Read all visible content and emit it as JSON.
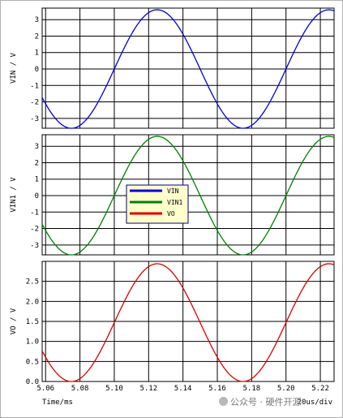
{
  "window": {
    "border_color": "#000000",
    "grid_color": "#000000",
    "background": "#ffffff"
  },
  "x_axis": {
    "label": "Time/ms",
    "range": [
      5.058,
      5.228
    ],
    "ticks": [
      5.06,
      5.08,
      5.1,
      5.12,
      5.14,
      5.16,
      5.18,
      5.2,
      5.22
    ],
    "tick_labels": [
      "5.06",
      "5.08",
      "5.10",
      "5.12",
      "5.14",
      "5.16",
      "5.18",
      "5.20",
      "5.22"
    ],
    "scale_text": "20us/div"
  },
  "legend": {
    "entries": [
      {
        "name": "VIN",
        "color": "#0000dd"
      },
      {
        "name": "VIN1",
        "color": "#008000"
      },
      {
        "name": "VO",
        "color": "#dd0000"
      }
    ],
    "placement": "middle-left (second panel)",
    "background": "#ffffcc"
  },
  "watermark": "公众号 · 硬件开源",
  "chart_data": [
    {
      "type": "line",
      "ylabel": "VIN / V",
      "ylim": [
        -3.6,
        3.7
      ],
      "yticks": [
        -3,
        -2,
        -1,
        0,
        1,
        2,
        3
      ],
      "ytick_labels": [
        "-3",
        "-2",
        "-1",
        "0",
        "1",
        "2",
        "3"
      ],
      "series": [
        {
          "name": "VIN",
          "color": "#0000dd",
          "amplitude": 3.6,
          "offset": 0,
          "period_ms": 0.1,
          "phase_ms": 5.05,
          "invert": true,
          "x": [
            5.058,
            5.076,
            5.101,
            5.126,
            5.151,
            5.176,
            5.201,
            5.226
          ],
          "y": [
            -1.6,
            -3.6,
            0,
            3.6,
            0,
            -3.6,
            0,
            3.6
          ]
        }
      ]
    },
    {
      "type": "line",
      "ylabel": "VIN1 / V",
      "ylim": [
        -3.6,
        3.7
      ],
      "yticks": [
        -3,
        -2,
        -1,
        0,
        1,
        2,
        3
      ],
      "ytick_labels": [
        "-3",
        "-2",
        "-1",
        "0",
        "1",
        "2",
        "3"
      ],
      "series": [
        {
          "name": "VIN1",
          "color": "#008000",
          "amplitude": 3.6,
          "offset": 0,
          "period_ms": 0.1,
          "phase_ms": 5.05,
          "invert": true,
          "x": [
            5.058,
            5.076,
            5.101,
            5.126,
            5.151,
            5.176,
            5.201,
            5.226
          ],
          "y": [
            -1.6,
            -3.6,
            0,
            3.6,
            0,
            -3.6,
            0,
            3.6
          ]
        }
      ]
    },
    {
      "type": "line",
      "ylabel": "VO / V",
      "ylim": [
        0,
        3.0
      ],
      "yticks": [
        0.0,
        0.5,
        1.0,
        1.5,
        2.0,
        2.5
      ],
      "ytick_labels": [
        "0.0",
        "0.5",
        "1.0",
        "1.5",
        "2.0",
        "2.5"
      ],
      "series": [
        {
          "name": "VO",
          "color": "#dd0000",
          "amplitude": 1.47,
          "offset": 1.47,
          "period_ms": 0.1,
          "phase_ms": 5.05,
          "invert": true,
          "x": [
            5.058,
            5.076,
            5.101,
            5.126,
            5.151,
            5.176,
            5.201,
            5.226
          ],
          "y": [
            0.82,
            0.0,
            1.47,
            2.94,
            1.47,
            0.0,
            1.47,
            2.94
          ]
        }
      ]
    }
  ]
}
